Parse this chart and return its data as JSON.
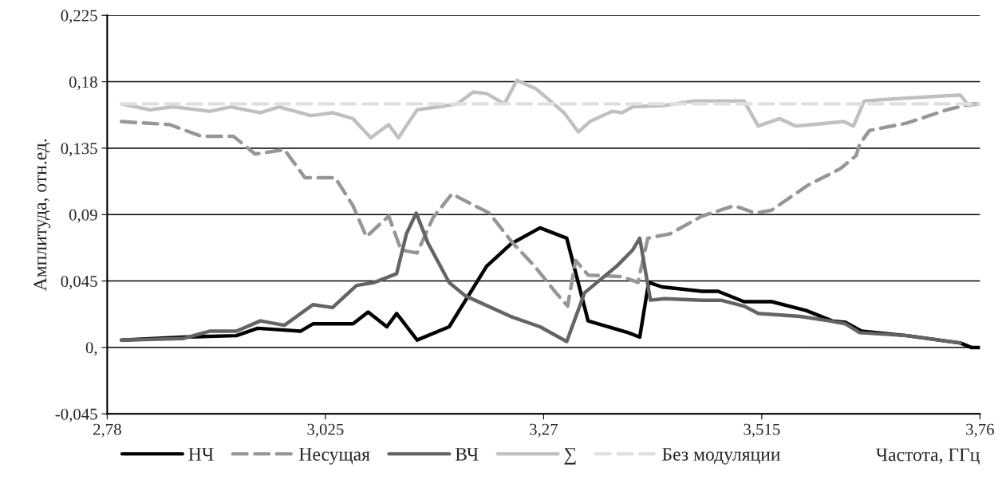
{
  "chart_data": {
    "type": "line",
    "xlabel": "Частота, ГГц",
    "ylabel": "Амплитуда, отн.ед.",
    "xlim": [
      2.78,
      3.76
    ],
    "xticks": [
      {
        "value": 2.78,
        "label": "2,78"
      },
      {
        "value": 3.025,
        "label": "3,025"
      },
      {
        "value": 3.27,
        "label": "3,27"
      },
      {
        "value": 3.515,
        "label": "3,515"
      },
      {
        "value": 3.76,
        "label": "3,76"
      }
    ],
    "ylim": [
      -0.045,
      0.225
    ],
    "yticks": [
      {
        "value": -0.045,
        "label": "-0,045"
      },
      {
        "value": 0,
        "label": "0,"
      },
      {
        "value": 0.045,
        "label": "0,045"
      },
      {
        "value": 0.09,
        "label": "0,09"
      },
      {
        "value": 0.135,
        "label": "0,135"
      },
      {
        "value": 0.18,
        "label": "0,18"
      },
      {
        "value": 0.225,
        "label": "0,225"
      }
    ],
    "grid": "y",
    "legend": "bottom",
    "marker": "none",
    "series": [
      {
        "name": "НЧ",
        "color": "#000000",
        "line_style": "solid",
        "x": [
          2.796,
          2.865,
          2.925,
          2.949,
          2.997,
          3.011,
          3.056,
          3.073,
          3.094,
          3.105,
          3.128,
          3.164,
          3.206,
          3.233,
          3.266,
          3.296,
          3.32,
          3.365,
          3.378,
          3.388,
          3.403,
          3.448,
          3.466,
          3.495,
          3.526,
          3.565,
          3.594,
          3.609,
          3.627,
          3.678,
          3.738,
          3.75,
          3.76
        ],
        "values": [
          0.005,
          0.007,
          0.008,
          0.013,
          0.011,
          0.016,
          0.016,
          0.024,
          0.014,
          0.023,
          0.005,
          0.014,
          0.055,
          0.07,
          0.081,
          0.074,
          0.018,
          0.01,
          0.007,
          0.044,
          0.041,
          0.038,
          0.038,
          0.031,
          0.031,
          0.025,
          0.018,
          0.017,
          0.011,
          0.008,
          0.003,
          0.0,
          0.0
        ]
      },
      {
        "name": "Несущая",
        "color": "#969696",
        "line_style": "dashed",
        "x": [
          2.796,
          2.85,
          2.886,
          2.922,
          2.946,
          2.979,
          3.002,
          3.036,
          3.056,
          3.071,
          3.096,
          3.11,
          3.128,
          3.146,
          3.167,
          3.209,
          3.235,
          3.26,
          3.284,
          3.297,
          3.306,
          3.32,
          3.358,
          3.376,
          3.387,
          3.412,
          3.448,
          3.484,
          3.508,
          3.526,
          3.567,
          3.603,
          3.621,
          3.625,
          3.636,
          3.678,
          3.723,
          3.75,
          3.76
        ],
        "values": [
          0.153,
          0.151,
          0.143,
          0.143,
          0.131,
          0.134,
          0.115,
          0.115,
          0.096,
          0.075,
          0.089,
          0.066,
          0.064,
          0.088,
          0.104,
          0.091,
          0.071,
          0.055,
          0.037,
          0.028,
          0.059,
          0.049,
          0.048,
          0.044,
          0.074,
          0.077,
          0.089,
          0.096,
          0.091,
          0.093,
          0.11,
          0.121,
          0.13,
          0.138,
          0.147,
          0.152,
          0.161,
          0.165,
          0.165
        ]
      },
      {
        "name": "ВЧ",
        "color": "#646464",
        "line_style": "solid",
        "x": [
          2.796,
          2.865,
          2.895,
          2.925,
          2.952,
          2.979,
          3.011,
          3.033,
          3.06,
          3.08,
          3.105,
          3.116,
          3.127,
          3.14,
          3.164,
          3.182,
          3.233,
          3.266,
          3.296,
          3.316,
          3.352,
          3.37,
          3.378,
          3.39,
          3.406,
          3.448,
          3.469,
          3.495,
          3.511,
          3.558,
          3.591,
          3.609,
          3.625,
          3.678,
          3.738
        ],
        "values": [
          0.005,
          0.006,
          0.011,
          0.011,
          0.018,
          0.015,
          0.029,
          0.027,
          0.042,
          0.044,
          0.05,
          0.077,
          0.091,
          0.071,
          0.044,
          0.035,
          0.021,
          0.014,
          0.004,
          0.037,
          0.055,
          0.066,
          0.074,
          0.032,
          0.033,
          0.032,
          0.032,
          0.028,
          0.023,
          0.021,
          0.018,
          0.016,
          0.01,
          0.008,
          0.003
        ]
      },
      {
        "name": "∑",
        "color": "#c0c0c0",
        "line_style": "solid",
        "x": [
          2.796,
          2.828,
          2.854,
          2.895,
          2.919,
          2.952,
          2.973,
          3.009,
          3.033,
          3.056,
          3.076,
          3.096,
          3.107,
          3.128,
          3.152,
          3.173,
          3.191,
          3.206,
          3.226,
          3.24,
          3.262,
          3.293,
          3.309,
          3.322,
          3.347,
          3.358,
          3.37,
          3.406,
          3.439,
          3.495,
          3.511,
          3.535,
          3.553,
          3.607,
          3.618,
          3.63,
          3.678,
          3.738,
          3.747,
          3.76
        ],
        "values": [
          0.165,
          0.161,
          0.163,
          0.16,
          0.163,
          0.159,
          0.163,
          0.157,
          0.159,
          0.155,
          0.142,
          0.151,
          0.142,
          0.161,
          0.163,
          0.165,
          0.173,
          0.172,
          0.165,
          0.181,
          0.175,
          0.159,
          0.146,
          0.153,
          0.16,
          0.159,
          0.163,
          0.164,
          0.167,
          0.167,
          0.15,
          0.155,
          0.15,
          0.153,
          0.15,
          0.167,
          0.169,
          0.171,
          0.164,
          0.165
        ]
      },
      {
        "name": "Без модуляции",
        "color": "#e0e0e0",
        "line_style": "dashed",
        "x": [
          2.796,
          3.76
        ],
        "values": [
          0.165,
          0.165
        ]
      }
    ]
  }
}
